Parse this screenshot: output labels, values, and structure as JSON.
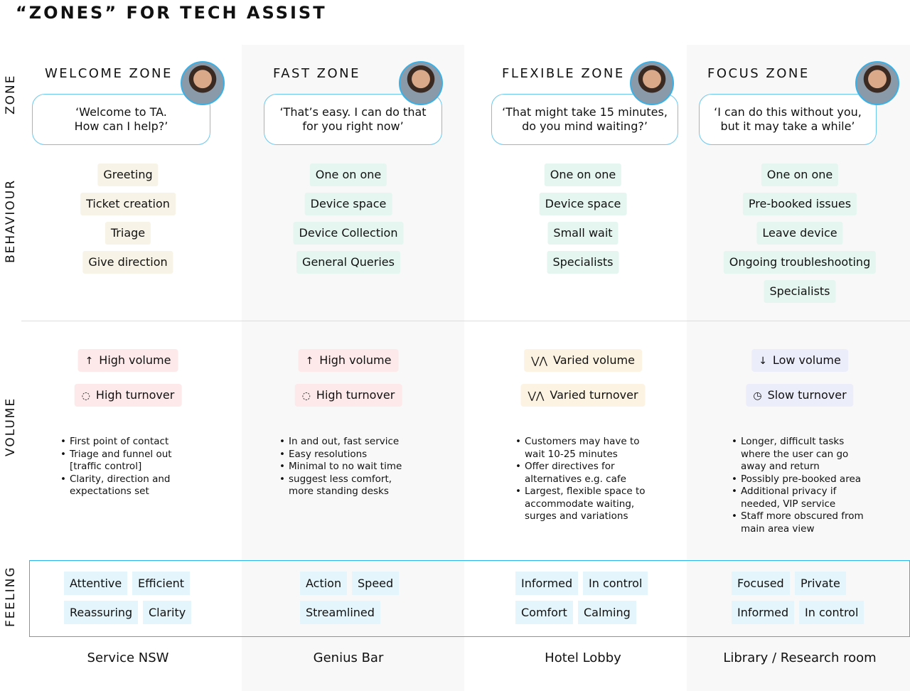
{
  "title": "“ZONES” FOR TECH ASSIST",
  "row_labels": {
    "zone": "ZONE",
    "behaviour": "BEHAVIOUR",
    "volume": "VOLUME",
    "feeling": "FEELING"
  },
  "colors": {
    "accent": "#29b6e8",
    "behaviour_welcome": "#f7f3e6",
    "behaviour_other": "#e4f6ef",
    "volume_high": "#fde9e9",
    "volume_varied": "#fdf3e2",
    "volume_low": "#ecedfb",
    "feeling": "#e4f5fb"
  },
  "zones": [
    {
      "name": "WELCOME ZONE",
      "quote": "‘Welcome to TA.\nHow can I help?’",
      "behaviours": [
        "Greeting",
        "Ticket creation",
        "Triage",
        "Give direction"
      ],
      "volume": [
        {
          "icon": "arrow-up-icon",
          "glyph": "↑",
          "label": "High volume"
        },
        {
          "icon": "refresh-icon",
          "glyph": "◌",
          "label": "High turnover"
        }
      ],
      "bullets": [
        "First point of contact",
        "Triage and funnel out\n[traffic control]",
        "Clarity, direction and\nexpectations set"
      ],
      "feelings": [
        [
          "Attentive",
          "Efficient"
        ],
        [
          "Reassuring",
          "Clarity"
        ]
      ],
      "place": "Service NSW"
    },
    {
      "name": "FAST ZONE",
      "quote": "‘That’s easy. I can do that\nfor you right now’",
      "behaviours": [
        "One on one",
        "Device space",
        "Device Collection",
        "General Queries"
      ],
      "volume": [
        {
          "icon": "arrow-up-icon",
          "glyph": "↑",
          "label": "High volume"
        },
        {
          "icon": "refresh-icon",
          "glyph": "◌",
          "label": "High turnover"
        }
      ],
      "bullets": [
        "In and out, fast service",
        "Easy resolutions",
        "Minimal to no wait time",
        "suggest less comfort,\nmore standing desks"
      ],
      "feelings": [
        [
          "Action",
          "Speed"
        ],
        [
          "Streamlined"
        ]
      ],
      "place": "Genius Bar"
    },
    {
      "name": "FLEXIBLE ZONE",
      "quote": "‘That might take 15 minutes,\ndo you mind waiting?’",
      "behaviours": [
        "One on one",
        "Device space",
        "Small wait",
        "Specialists"
      ],
      "volume": [
        {
          "icon": "zigzag-icon",
          "glyph": "⋁⋀",
          "label": "Varied volume"
        },
        {
          "icon": "zigzag-icon",
          "glyph": "⋁⋀",
          "label": "Varied turnover"
        }
      ],
      "bullets": [
        "Customers may have to\nwait 10-25 minutes",
        "Offer directives for\nalternatives e.g. cafe",
        "Largest, flexible space to\naccommodate waiting,\nsurges and variations"
      ],
      "feelings": [
        [
          "Informed",
          "In control"
        ],
        [
          "Comfort",
          "Calming"
        ]
      ],
      "place": "Hotel Lobby"
    },
    {
      "name": "FOCUS ZONE",
      "quote": "‘I can do this without you,\nbut it may take a while’",
      "behaviours": [
        "One on one",
        "Pre-booked issues",
        "Leave device",
        "Ongoing troubleshooting",
        "Specialists"
      ],
      "volume": [
        {
          "icon": "arrow-down-icon",
          "glyph": "↓",
          "label": "Low volume"
        },
        {
          "icon": "clock-icon",
          "glyph": "◷",
          "label": "Slow turnover"
        }
      ],
      "bullets": [
        "Longer, difficult tasks\nwhere the user can go\naway and return",
        "Possibly pre-booked area",
        "Additional privacy if\nneeded, VIP service",
        "Staff more obscured from\nmain area view"
      ],
      "feelings": [
        [
          "Focused",
          "Private"
        ],
        [
          "Informed",
          "In control"
        ]
      ],
      "place": "Library / Research room"
    }
  ]
}
